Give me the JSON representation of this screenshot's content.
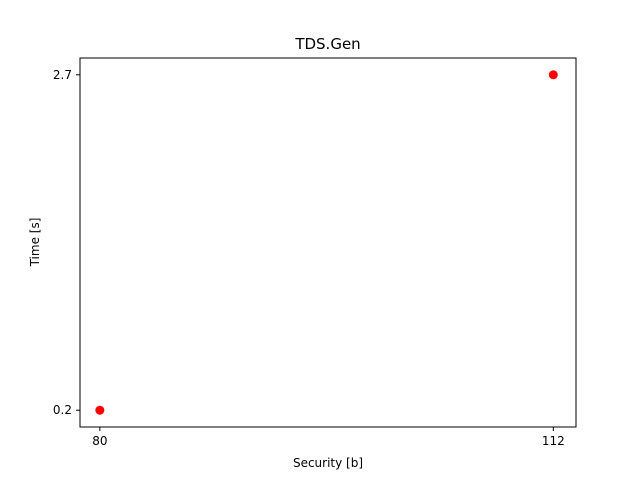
{
  "chart_data": {
    "type": "scatter",
    "title": "TDS.Gen",
    "xlabel": "Security [b]",
    "ylabel": "Time [s]",
    "x_ticks": [
      80,
      112
    ],
    "y_ticks": [
      0.2,
      2.7
    ],
    "xlim": [
      78.6,
      113.6
    ],
    "ylim": [
      0.075,
      2.825
    ],
    "series": [
      {
        "color": "#ff0000",
        "points": [
          {
            "x": 80,
            "y": 0.2
          },
          {
            "x": 112,
            "y": 2.7
          }
        ]
      }
    ],
    "grid": false
  }
}
